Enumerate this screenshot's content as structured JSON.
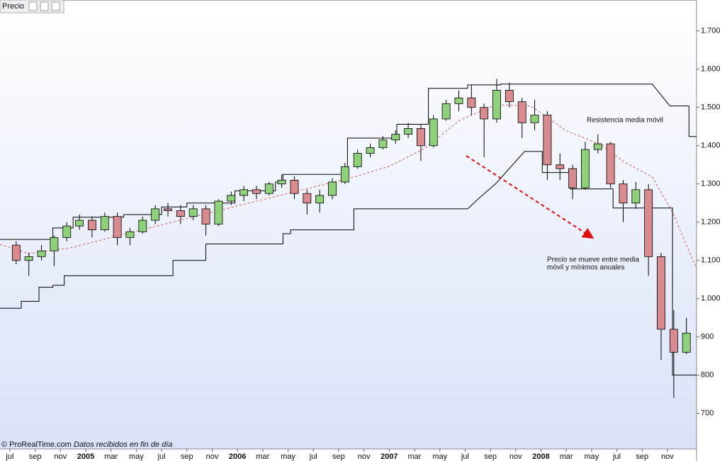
{
  "chart_data": {
    "type": "candlestick",
    "title": "Precio",
    "source": "© ProRealTime.com",
    "note": "Datos recibidos en fin de día",
    "annotations": [
      "Resistencia media móvil",
      "Precio se mueve entre media",
      "móvil y mínimos anuales"
    ],
    "up_color": "#8fd07a",
    "down_color": "#d98c8f",
    "xlim": [
      -0.78,
      54.3
    ],
    "ylim": [
      607,
      1781
    ],
    "xticks": [
      {
        "value": 0,
        "label": "jul"
      },
      {
        "value": 2,
        "label": "sep"
      },
      {
        "value": 4,
        "label": "nov"
      },
      {
        "value": 6,
        "label": "2005"
      },
      {
        "value": 8,
        "label": "mar"
      },
      {
        "value": 10,
        "label": "may"
      },
      {
        "value": 12,
        "label": "jul"
      },
      {
        "value": 14,
        "label": "sep"
      },
      {
        "value": 16,
        "label": "nov"
      },
      {
        "value": 18,
        "label": "2006"
      },
      {
        "value": 20,
        "label": "mar"
      },
      {
        "value": 22,
        "label": "may"
      },
      {
        "value": 24,
        "label": "jul"
      },
      {
        "value": 26,
        "label": "sep"
      },
      {
        "value": 28,
        "label": "nov"
      },
      {
        "value": 30,
        "label": "2007"
      },
      {
        "value": 32,
        "label": "mar"
      },
      {
        "value": 34,
        "label": "may"
      },
      {
        "value": 36,
        "label": "jul"
      },
      {
        "value": 38,
        "label": "sep"
      },
      {
        "value": 40,
        "label": "nov"
      },
      {
        "value": 42,
        "label": "2008"
      },
      {
        "value": 44,
        "label": "mar"
      },
      {
        "value": 46,
        "label": "may"
      },
      {
        "value": 48,
        "label": "jul"
      },
      {
        "value": 50,
        "label": "sep"
      },
      {
        "value": 52,
        "label": "nov"
      }
    ],
    "yticks": [
      700,
      {
        "value": 800,
        "label": "800"
      },
      {
        "value": 900,
        "label": "900"
      },
      {
        "value": 1000,
        "label": "1.000"
      },
      {
        "value": 1100,
        "label": "1.100"
      },
      {
        "value": 1200,
        "label": "1.200"
      },
      {
        "value": 1300,
        "label": "1.300"
      },
      {
        "value": 1400,
        "label": "1.400"
      },
      {
        "value": 1500,
        "label": "1.500"
      },
      {
        "value": 1600,
        "label": "1.600"
      },
      {
        "value": 1700,
        "label": "1.700"
      }
    ],
    "x": [
      0.5,
      1.5,
      2.5,
      3.5,
      4.5,
      5.5,
      6.5,
      7.5,
      8.5,
      9.5,
      10.5,
      11.5,
      12.5,
      13.5,
      14.5,
      15.5,
      16.5,
      17.5,
      18.5,
      19.5,
      20.5,
      21.5,
      22.5,
      23.5,
      24.5,
      25.5,
      26.5,
      27.5,
      28.5,
      29.5,
      30.5,
      31.5,
      32.5,
      33.5,
      34.5,
      35.5,
      36.5,
      37.5,
      38.5,
      39.5,
      40.5,
      41.5,
      42.5,
      43.5,
      44.5,
      45.5,
      46.5,
      47.5,
      48.5,
      49.5,
      50.5,
      51.5,
      52.5,
      53.5
    ],
    "open": [
      1140,
      1100,
      1110,
      1125,
      1160,
      1190,
      1205,
      1180,
      1215,
      1160,
      1175,
      1205,
      1235,
      1230,
      1215,
      1235,
      1195,
      1255,
      1270,
      1285,
      1275,
      1300,
      1310,
      1275,
      1250,
      1270,
      1305,
      1345,
      1380,
      1395,
      1415,
      1430,
      1445,
      1400,
      1470,
      1510,
      1525,
      1500,
      1470,
      1545,
      1515,
      1460,
      1480,
      1350,
      1340,
      1290,
      1390,
      1405,
      1300,
      1250,
      1285,
      1110,
      920,
      860
    ],
    "high": [
      1150,
      1120,
      1140,
      1165,
      1200,
      1220,
      1215,
      1225,
      1225,
      1185,
      1215,
      1245,
      1250,
      1245,
      1245,
      1245,
      1260,
      1280,
      1295,
      1295,
      1305,
      1325,
      1320,
      1285,
      1285,
      1315,
      1355,
      1390,
      1405,
      1425,
      1440,
      1460,
      1455,
      1480,
      1520,
      1545,
      1560,
      1510,
      1575,
      1565,
      1525,
      1520,
      1490,
      1380,
      1350,
      1410,
      1430,
      1410,
      1310,
      1305,
      1300,
      1120,
      970,
      950
    ],
    "low": [
      1090,
      1060,
      1100,
      1085,
      1150,
      1180,
      1160,
      1175,
      1140,
      1140,
      1170,
      1195,
      1215,
      1195,
      1205,
      1165,
      1190,
      1245,
      1255,
      1260,
      1270,
      1290,
      1260,
      1220,
      1225,
      1260,
      1300,
      1340,
      1370,
      1390,
      1405,
      1420,
      1360,
      1395,
      1465,
      1490,
      1480,
      1370,
      1460,
      1500,
      1420,
      1440,
      1310,
      1310,
      1260,
      1285,
      1380,
      1290,
      1200,
      1235,
      1060,
      840,
      740,
      855
    ],
    "close": [
      1100,
      1110,
      1125,
      1160,
      1190,
      1205,
      1180,
      1215,
      1160,
      1175,
      1205,
      1235,
      1230,
      1215,
      1235,
      1195,
      1255,
      1270,
      1285,
      1275,
      1300,
      1310,
      1275,
      1250,
      1270,
      1305,
      1345,
      1380,
      1395,
      1415,
      1430,
      1445,
      1400,
      1470,
      1510,
      1525,
      1500,
      1470,
      1545,
      1515,
      1460,
      1480,
      1350,
      1340,
      1290,
      1390,
      1405,
      1300,
      1250,
      1285,
      1110,
      920,
      860,
      910
    ],
    "lines": [
      {
        "color": "#e05050",
        "dashed": true,
        "x": [
          -0.78,
          1.46,
          4.8,
          10.4,
          16,
          21.6,
          27.2,
          30,
          32.8,
          35.6,
          38.4,
          41.2,
          44,
          46.8,
          48.5,
          50.8,
          52.4,
          54.3
        ],
        "values": [
          1142,
          1118,
          1133,
          1180,
          1226,
          1272,
          1318,
          1346,
          1393,
          1467,
          1507,
          1504,
          1439,
          1402,
          1359,
          1318,
          1226,
          1078
        ]
      },
      {
        "color": "#000000",
        "dashed": false,
        "x": [
          -0.78,
          3.4,
          3.4,
          5,
          5,
          9,
          9,
          12,
          12,
          14,
          14,
          17.8,
          17.8,
          21,
          21,
          21.6,
          21.6,
          26.7,
          26.7,
          30.6,
          30.6,
          33.1,
          33.1,
          36.2,
          36.2,
          38.8,
          38.8,
          50.8,
          52.2,
          53.7,
          53.7,
          54.3
        ],
        "values": [
          1155,
          1155,
          1185,
          1185,
          1213,
          1213,
          1220,
          1220,
          1240,
          1240,
          1250,
          1250,
          1282,
          1282,
          1305,
          1305,
          1325,
          1325,
          1420,
          1420,
          1456,
          1456,
          1550,
          1550,
          1559,
          1559,
          1561,
          1561,
          1504,
          1504,
          1424,
          1424
        ]
      },
      {
        "color": "#000000",
        "dashed": false,
        "x": [
          -0.78,
          0.9,
          0.9,
          2.3,
          2.3,
          3.4,
          3.4,
          4.3,
          4.3,
          12.9,
          12.9,
          15.5,
          15.5,
          21.6,
          21.6,
          22.2,
          22.2,
          27.2,
          27.2,
          36.2,
          37,
          38.4,
          40.7,
          42.1,
          42.1,
          44.3,
          44.3,
          47.7,
          47.7,
          52.4,
          52.4,
          54.3
        ],
        "values": [
          975,
          975,
          993,
          993,
          1030,
          1030,
          1035,
          1035,
          1060,
          1060,
          1100,
          1100,
          1143,
          1143,
          1170,
          1170,
          1180,
          1180,
          1235,
          1235,
          1260,
          1300,
          1385,
          1385,
          1330,
          1330,
          1287,
          1287,
          1237,
          1237,
          800,
          800
        ]
      }
    ]
  }
}
